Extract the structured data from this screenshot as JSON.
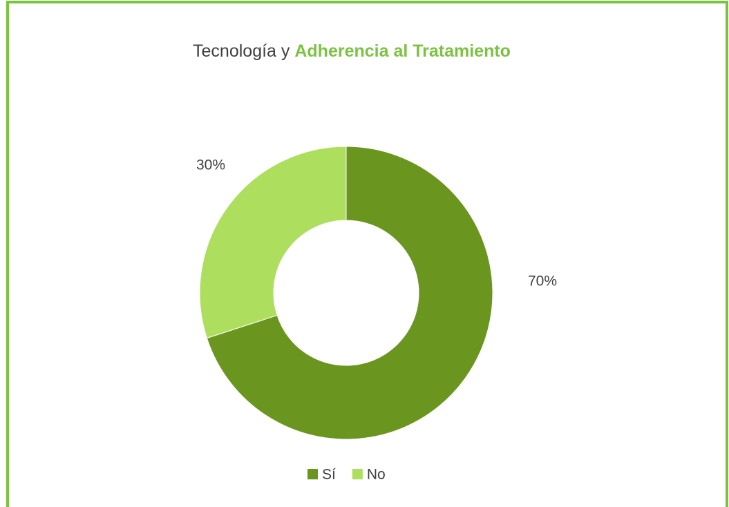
{
  "chart_data": {
    "type": "donut",
    "title": [
      "Tecnología y",
      "Adherencia al Tratamiento"
    ],
    "categories": [
      "Sí",
      "No"
    ],
    "values": [
      70,
      30
    ],
    "value_labels": [
      "70%",
      "30%"
    ],
    "colors": [
      "#6a961f",
      "#aede5e"
    ],
    "legend": "bottom"
  }
}
